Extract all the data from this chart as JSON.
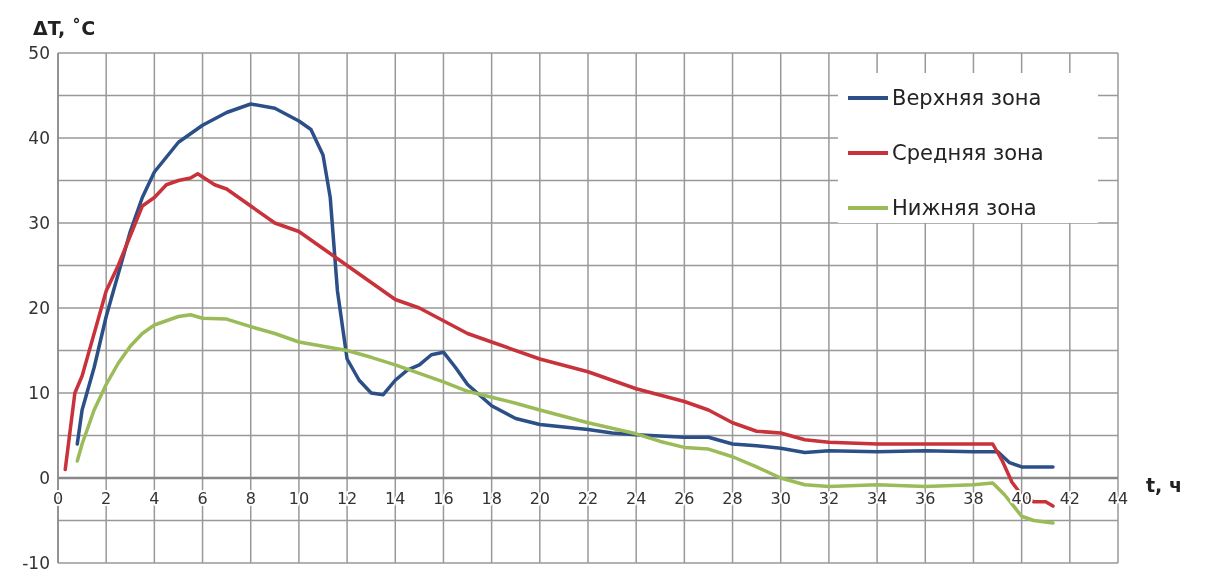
{
  "chart_data": {
    "type": "line",
    "ylabel": "ΔT, ˚C",
    "xlabel": "t, ч",
    "xlim": [
      0,
      44
    ],
    "xticks": [
      0,
      2,
      4,
      6,
      8,
      10,
      12,
      14,
      16,
      18,
      20,
      22,
      24,
      26,
      28,
      30,
      32,
      34,
      36,
      38,
      40,
      42,
      44
    ],
    "ylim": [
      -10,
      50
    ],
    "yticks": [
      -10,
      {
        "value": -5,
        "label": null
      },
      0,
      {
        "value": 5,
        "label": null
      },
      10,
      {
        "value": 15,
        "label": null
      },
      20,
      {
        "value": 25,
        "label": null
      },
      30,
      {
        "value": 35,
        "label": null
      },
      40,
      {
        "value": 45,
        "label": null
      },
      50
    ],
    "grid": true,
    "legend": "top right",
    "line_style": "solid",
    "series": [
      {
        "name": "Верхняя зона",
        "color": "#2b4f86",
        "x": [
          0.8,
          1,
          1.5,
          2,
          2.5,
          3,
          3.5,
          4,
          5,
          6,
          7,
          8,
          9,
          10,
          10.5,
          11,
          11.3,
          11.6,
          12,
          12.5,
          13,
          13.5,
          14,
          14.5,
          15,
          15.5,
          16,
          16.5,
          17,
          18,
          19,
          20,
          22,
          23,
          24,
          26,
          27,
          28,
          29,
          30,
          31,
          32,
          34,
          36,
          38,
          39,
          39.5,
          40,
          41,
          41.3
        ],
        "values": [
          4,
          8,
          13,
          19,
          24,
          29,
          33,
          36,
          39.5,
          41.5,
          43,
          44,
          43.5,
          42,
          41,
          38,
          33,
          22,
          14,
          11.5,
          10,
          9.8,
          11.5,
          12.7,
          13.3,
          14.5,
          14.8,
          13,
          11,
          8.5,
          7,
          6.3,
          5.7,
          5.3,
          5.1,
          4.8,
          4.8,
          4,
          3.8,
          3.5,
          3,
          3.2,
          3.1,
          3.2,
          3.1,
          3.1,
          1.8,
          1.3,
          1.3,
          1.3
        ]
      },
      {
        "name": "Средняя зона",
        "color": "#c8323a",
        "x": [
          0.3,
          0.7,
          1,
          1.5,
          2,
          2.5,
          3,
          3.5,
          4,
          4.5,
          5,
          5.5,
          5.8,
          6.5,
          7,
          7.5,
          8,
          9,
          10,
          11,
          12,
          13,
          14,
          15,
          16,
          17,
          18,
          20,
          22,
          24,
          26,
          27,
          28,
          29,
          30,
          31,
          32,
          34,
          36,
          38,
          38.8,
          39.2,
          39.6,
          40,
          40.5,
          41,
          41.3
        ],
        "values": [
          1,
          10,
          12,
          17,
          22,
          25,
          28.5,
          32,
          33,
          34.5,
          35,
          35.3,
          35.8,
          34.5,
          34,
          33,
          32,
          30,
          29,
          27,
          25,
          23,
          21,
          20,
          18.5,
          17,
          16,
          14,
          12.5,
          10.5,
          9,
          8,
          6.5,
          5.5,
          5.3,
          4.5,
          4.2,
          4,
          4,
          4,
          4,
          2,
          -0.5,
          -2,
          -2.8,
          -2.8,
          -3.3
        ]
      },
      {
        "name": "Нижняя зона",
        "color": "#9bbb59",
        "x": [
          0.8,
          1,
          1.5,
          2,
          2.5,
          3,
          3.5,
          4,
          5,
          5.5,
          6,
          7,
          8,
          9,
          10,
          11,
          12,
          13,
          14,
          15,
          16,
          17,
          18,
          19,
          20,
          22,
          24,
          25,
          26,
          27,
          28,
          29,
          30,
          31,
          32,
          34,
          36,
          38,
          38.8,
          39.3,
          40,
          40.5,
          41.3
        ],
        "values": [
          2,
          4,
          8,
          11,
          13.5,
          15.5,
          17,
          18,
          19,
          19.2,
          18.8,
          18.7,
          17.8,
          17,
          16,
          15.5,
          15,
          14.2,
          13.3,
          12.3,
          11.3,
          10.2,
          9.5,
          8.8,
          8,
          6.5,
          5.2,
          4.3,
          3.6,
          3.4,
          2.5,
          1.3,
          0,
          -0.8,
          -1,
          -0.8,
          -1,
          -0.8,
          -0.6,
          -2,
          -4.5,
          -5,
          -5.3
        ]
      }
    ]
  }
}
